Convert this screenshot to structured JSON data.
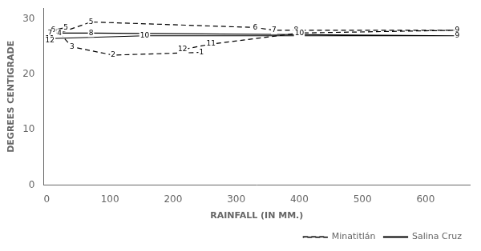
{
  "chart_data": {
    "type": "line",
    "xlabel": "RAINFALL (IN MM.)",
    "ylabel": "DEGREES CENTIGRADE",
    "xlim": [
      -5,
      670
    ],
    "ylim": [
      0,
      32
    ],
    "xticks": [
      0,
      100,
      200,
      300,
      400,
      500,
      600
    ],
    "yticks": [
      0,
      10,
      20,
      30
    ],
    "grid": false,
    "legend": "lower right",
    "series": [
      {
        "name": "Minatitlán",
        "color": "#000000",
        "line_style": "dashed",
        "x": [
          245,
          105,
          40,
          20,
          70,
          330,
          360,
          395,
          650,
          400,
          260,
          215
        ],
        "values": [
          24.0,
          23.5,
          25.0,
          27.5,
          29.5,
          28.5,
          28.0,
          28.0,
          28.0,
          27.5,
          25.5,
          24.5
        ],
        "annotations": [
          "1",
          "2",
          "3",
          "4",
          "5",
          "6",
          "7",
          "8",
          "9",
          "10",
          "11",
          "12"
        ]
      },
      {
        "name": "Salina Cruz",
        "color": "#000000",
        "line_style": "solid",
        "x": [
          5,
          5,
          5,
          5,
          30,
          10,
          5,
          70,
          650,
          155,
          5,
          5
        ],
        "values": [
          26.3,
          26.0,
          26.5,
          27.5,
          28.5,
          28.0,
          27.5,
          27.5,
          27.0,
          27.0,
          26.5,
          26.2
        ],
        "annotations": [
          "1",
          "2",
          "3",
          "4",
          "5",
          "6",
          "7",
          "8",
          "9",
          "10",
          "11",
          "12"
        ]
      }
    ]
  }
}
